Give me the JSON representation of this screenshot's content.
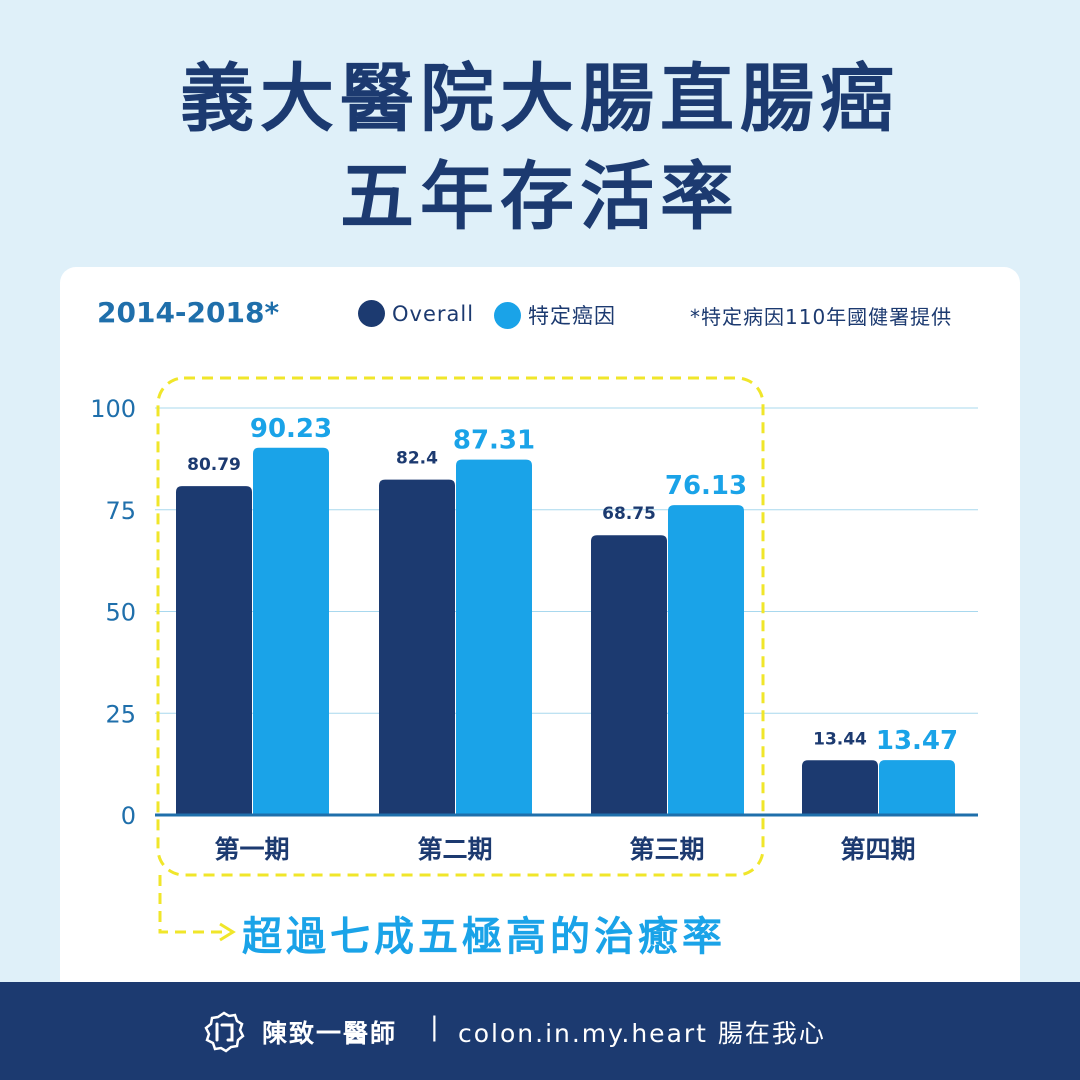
{
  "title": {
    "line1": "義大醫院大腸直腸癌",
    "line2": "五年存活率"
  },
  "period_label": "2014-2018*",
  "note": "*特定病因110年國健署提供",
  "slogan": "超過七成五極高的治癒率",
  "colors": {
    "overall": "#1c3a70",
    "specific": "#1aa3e8",
    "highlight": "#f0e62a",
    "background": "#dff0f9"
  },
  "footer": {
    "logo_text": "门",
    "name": "陳致一醫師",
    "separator": "|",
    "site": "colon.in.my.heart 腸在我心"
  },
  "chart_data": {
    "type": "bar",
    "categories": [
      "第一期",
      "第二期",
      "第三期",
      "第四期"
    ],
    "series": [
      {
        "name": "Overall",
        "values": [
          80.79,
          82.4,
          68.75,
          13.44
        ],
        "labels": [
          "80.79",
          "82.4",
          "68.75",
          "13.44"
        ]
      },
      {
        "name": "特定癌因",
        "values": [
          90.23,
          87.31,
          76.13,
          13.47
        ],
        "labels": [
          "90.23",
          "87.31",
          "76.13",
          "13.47"
        ]
      }
    ],
    "yticks": [
      "0",
      "25",
      "50",
      "75",
      "100"
    ],
    "ylim": [
      0,
      100
    ],
    "grid": true,
    "legend": "top"
  }
}
